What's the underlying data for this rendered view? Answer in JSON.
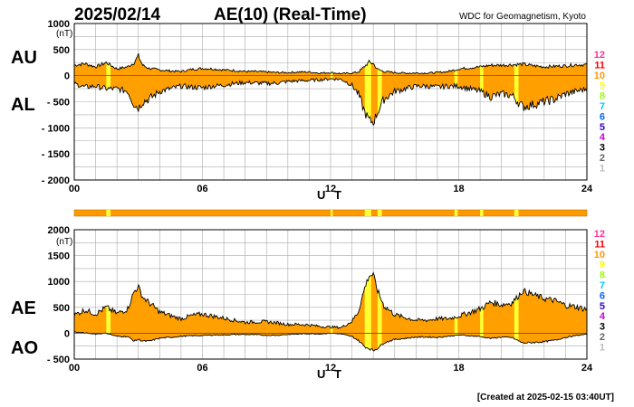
{
  "title": {
    "date": "2025/02/14",
    "index": "AE(10) (Real-Time)",
    "source": "WDC for Geomagnetism, Kyoto"
  },
  "footer": "[Created at 2025-02-15 03:40UT]",
  "colors": {
    "fill": "#ffa000",
    "highlight": "#ffff33",
    "line": "#000000",
    "grid": "#aaaaaa",
    "station_bar": "#ff9900"
  },
  "station_scale": [
    {
      "label": "12",
      "color": "#ff3399"
    },
    {
      "label": "11",
      "color": "#ff0000"
    },
    {
      "label": "10",
      "color": "#ff9900"
    },
    {
      "label": "9",
      "color": "#ffff00"
    },
    {
      "label": "8",
      "color": "#99ff00"
    },
    {
      "label": "7",
      "color": "#00ccff"
    },
    {
      "label": "6",
      "color": "#0066ff"
    },
    {
      "label": "5",
      "color": "#3300cc"
    },
    {
      "label": "4",
      "color": "#cc00cc"
    },
    {
      "label": "3",
      "color": "#000000"
    },
    {
      "label": "2",
      "color": "#666666"
    },
    {
      "label": "1",
      "color": "#bbbbbb"
    }
  ],
  "low_station_windows": [
    [
      1.5,
      1.7
    ],
    [
      12.0,
      12.1
    ],
    [
      13.6,
      13.9
    ],
    [
      14.2,
      14.4
    ],
    [
      17.8,
      17.95
    ],
    [
      19.0,
      19.15
    ],
    [
      20.6,
      20.8
    ]
  ],
  "chart_data": [
    {
      "type": "area",
      "title": "AU / AL",
      "xlabel": "U T",
      "ylabel": "(nT)",
      "series_labels": [
        "AU",
        "AL"
      ],
      "xlim": [
        0,
        24
      ],
      "ylim": [
        -2000,
        1000
      ],
      "x_ticks": [
        "00",
        "06",
        "12",
        "18",
        "24"
      ],
      "y_ticks": [
        "1000",
        "500",
        "0",
        "- 500",
        "- 1000",
        "- 1500",
        "- 2000"
      ],
      "series": [
        {
          "name": "AU",
          "x": [
            0,
            0.5,
            1,
            1.5,
            2,
            2.5,
            2.8,
            3,
            3.2,
            3.5,
            4,
            4.5,
            5,
            5.5,
            6,
            6.5,
            7,
            7.5,
            8,
            8.5,
            9,
            9.5,
            10,
            10.5,
            11,
            11.5,
            12,
            12.5,
            13,
            13.3,
            13.6,
            13.8,
            14,
            14.2,
            14.5,
            15,
            15.5,
            16,
            16.5,
            17,
            17.5,
            18,
            18.5,
            19,
            19.5,
            20,
            20.5,
            21,
            21.5,
            22,
            22.5,
            23,
            23.5,
            24
          ],
          "values": [
            200,
            230,
            170,
            250,
            130,
            170,
            250,
            380,
            200,
            140,
            110,
            90,
            80,
            120,
            140,
            130,
            110,
            100,
            80,
            80,
            70,
            60,
            60,
            70,
            70,
            50,
            60,
            40,
            50,
            70,
            180,
            260,
            230,
            120,
            80,
            60,
            50,
            50,
            50,
            60,
            80,
            130,
            150,
            170,
            200,
            200,
            210,
            220,
            190,
            170,
            180,
            190,
            210,
            210
          ]
        },
        {
          "name": "AL",
          "x": [
            0,
            0.5,
            1,
            1.5,
            2,
            2.5,
            2.8,
            3,
            3.2,
            3.5,
            4,
            4.5,
            5,
            5.5,
            6,
            6.5,
            7,
            7.5,
            8,
            8.5,
            9,
            9.5,
            10,
            10.5,
            11,
            11.5,
            12,
            12.5,
            13,
            13.3,
            13.6,
            13.8,
            14,
            14.2,
            14.5,
            15,
            15.5,
            16,
            16.5,
            17,
            17.5,
            18,
            18.5,
            19,
            19.5,
            20,
            20.5,
            21,
            21.5,
            22,
            22.5,
            23,
            23.5,
            24
          ],
          "values": [
            -150,
            -220,
            -200,
            -250,
            -250,
            -300,
            -550,
            -620,
            -500,
            -450,
            -300,
            -250,
            -200,
            -220,
            -230,
            -200,
            -180,
            -150,
            -130,
            -140,
            -150,
            -140,
            -110,
            -100,
            -90,
            -80,
            -60,
            -70,
            -180,
            -350,
            -700,
            -850,
            -900,
            -700,
            -450,
            -300,
            -250,
            -200,
            -200,
            -220,
            -200,
            -200,
            -250,
            -300,
            -400,
            -350,
            -380,
            -600,
            -550,
            -500,
            -450,
            -350,
            -300,
            -250
          ]
        }
      ]
    },
    {
      "type": "area",
      "title": "AE / AO",
      "xlabel": "U T",
      "ylabel": "(nT)",
      "series_labels": [
        "AE",
        "AO"
      ],
      "xlim": [
        0,
        24
      ],
      "ylim": [
        -500,
        2000
      ],
      "x_ticks": [
        "00",
        "06",
        "12",
        "18",
        "24"
      ],
      "y_ticks": [
        "2000",
        "1500",
        "1000",
        "500",
        "0",
        "- 500"
      ],
      "series": [
        {
          "name": "AE",
          "x": [
            0,
            0.5,
            1,
            1.5,
            2,
            2.5,
            2.8,
            3,
            3.2,
            3.5,
            4,
            4.5,
            5,
            5.5,
            6,
            6.5,
            7,
            7.5,
            8,
            8.5,
            9,
            9.5,
            10,
            10.5,
            11,
            11.5,
            12,
            12.5,
            13,
            13.3,
            13.6,
            13.8,
            14,
            14.2,
            14.5,
            15,
            15.5,
            16,
            16.5,
            17,
            17.5,
            18,
            18.5,
            19,
            19.5,
            20,
            20.5,
            21,
            21.5,
            22,
            22.5,
            23,
            23.5,
            24
          ],
          "values": [
            350,
            450,
            370,
            500,
            380,
            470,
            800,
            900,
            700,
            590,
            410,
            340,
            280,
            340,
            370,
            330,
            290,
            250,
            210,
            220,
            220,
            200,
            170,
            170,
            160,
            130,
            120,
            110,
            230,
            420,
            880,
            1110,
            1130,
            820,
            530,
            360,
            300,
            250,
            250,
            280,
            280,
            330,
            400,
            470,
            600,
            550,
            590,
            820,
            740,
            670,
            630,
            540,
            510,
            460
          ]
        },
        {
          "name": "AO",
          "x": [
            0,
            0.5,
            1,
            1.5,
            2,
            2.5,
            2.8,
            3,
            3.2,
            3.5,
            4,
            4.5,
            5,
            5.5,
            6,
            6.5,
            7,
            7.5,
            8,
            8.5,
            9,
            9.5,
            10,
            10.5,
            11,
            11.5,
            12,
            12.5,
            13,
            13.3,
            13.6,
            13.8,
            14,
            14.2,
            14.5,
            15,
            15.5,
            16,
            16.5,
            17,
            17.5,
            18,
            18.5,
            19,
            19.5,
            20,
            20.5,
            21,
            21.5,
            22,
            22.5,
            23,
            23.5,
            24
          ],
          "values": [
            25,
            5,
            -15,
            0,
            -60,
            -65,
            -150,
            -120,
            -150,
            -155,
            -95,
            -80,
            -60,
            -50,
            -45,
            -35,
            -35,
            -25,
            -25,
            -30,
            -40,
            -40,
            -25,
            -15,
            -10,
            -15,
            0,
            -15,
            -65,
            -140,
            -260,
            -295,
            -335,
            -290,
            -185,
            -120,
            -100,
            -75,
            -75,
            -80,
            -60,
            -35,
            -50,
            -65,
            -100,
            -75,
            -85,
            -190,
            -180,
            -165,
            -135,
            -80,
            -45,
            -20
          ]
        }
      ]
    }
  ]
}
